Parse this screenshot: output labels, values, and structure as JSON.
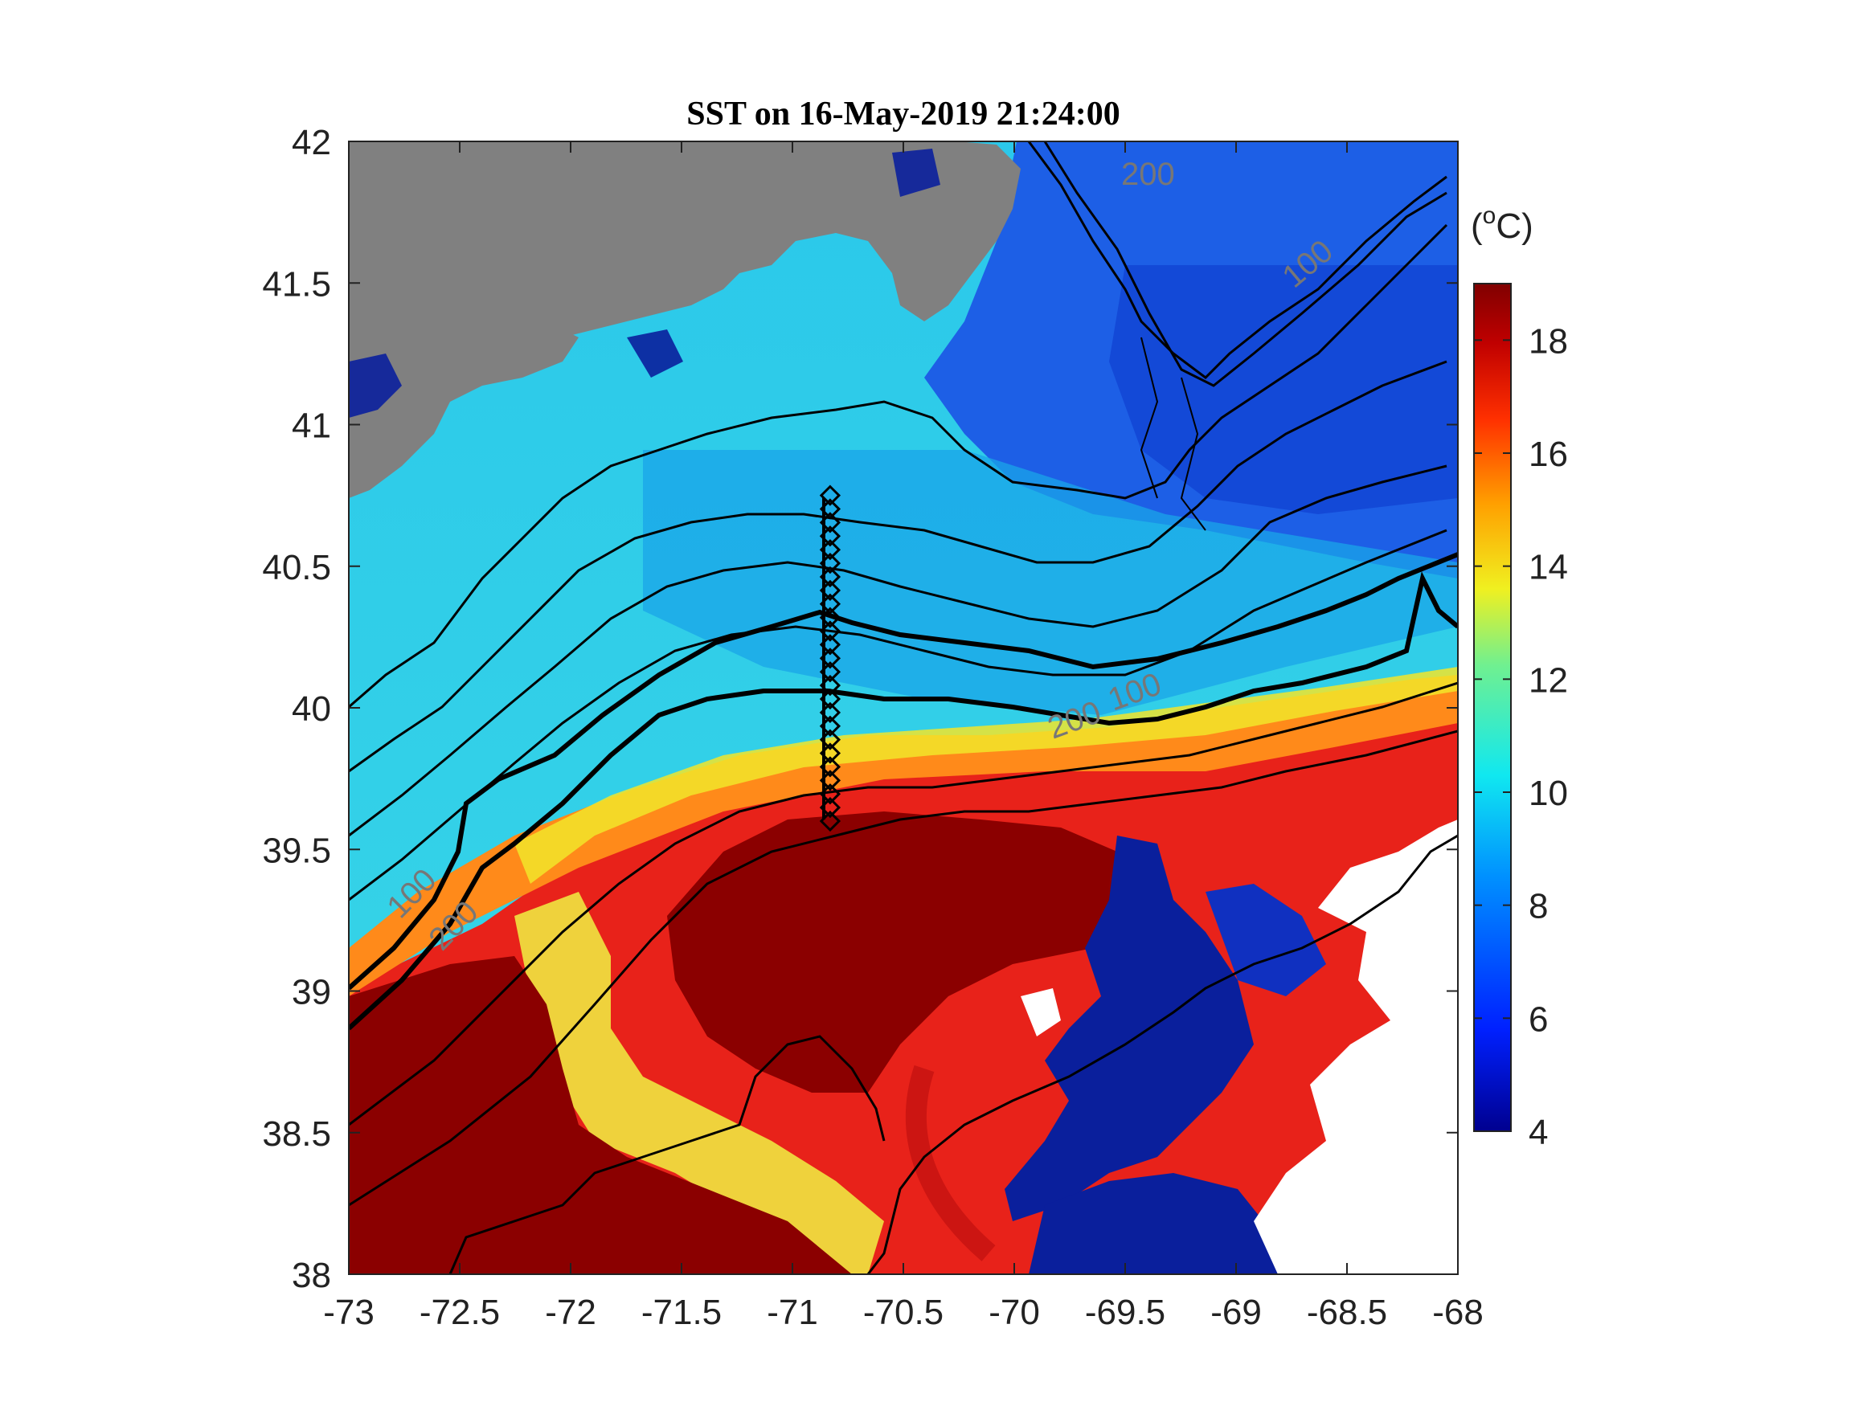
{
  "title": "SST on 16-May-2019 21:24:00",
  "x_ticks": [
    "-73",
    "-72.5",
    "-72",
    "-71.5",
    "-71",
    "-70.5",
    "-70",
    "-69.5",
    "-69",
    "-68.5",
    "-68"
  ],
  "y_ticks": [
    "42",
    "41.5",
    "41",
    "40.5",
    "40",
    "39.5",
    "39",
    "38.5",
    "38"
  ],
  "colorbar": {
    "unit_prefix": "(",
    "unit_sup": "o",
    "unit_suffix": "C)",
    "ticks": [
      "18",
      "16",
      "14",
      "12",
      "10",
      "8",
      "6",
      "4"
    ],
    "range": [
      4,
      19
    ]
  },
  "contour_labels": {
    "c200_north": "200",
    "c100_north": "100",
    "c200_shelf": "200",
    "c100_shelf": "100",
    "c100_west": "100",
    "c200_west": "200"
  },
  "map": {
    "lon_range": [
      -73,
      -68
    ],
    "lat_range": [
      38,
      42
    ],
    "transect_lon": -70.83,
    "transect_lat_range": [
      39.6,
      40.75
    ],
    "colors": {
      "land": "#808080",
      "no_data": "#ffffff",
      "cold": "#0a1f9c",
      "cyan": "#2fd3ec",
      "warm": "#e8221a",
      "hot": "#8b0000",
      "yellow": "#f2e52a"
    }
  }
}
